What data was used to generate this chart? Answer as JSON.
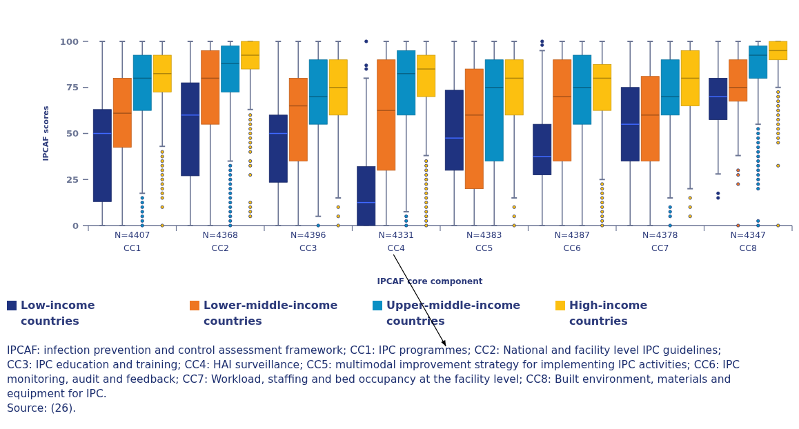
{
  "chart_data": {
    "type": "box",
    "categories": [
      "N=4407\nCC1",
      "N=4368\nCC2",
      "N=4396\nCC3",
      "N=4331\nCC4",
      "N=4383\nCC5",
      "N=4387\nCC6",
      "N=4378\nCC7",
      "N=4347\nCC8"
    ],
    "xlabel": "IPCAF core component",
    "ylabel": "IPCAF scores",
    "ylim": [
      0,
      100
    ],
    "yticks": [
      0,
      25,
      50,
      75,
      100
    ],
    "grid": false,
    "legend": "bottom",
    "series": [
      {
        "name": "Low-income countries",
        "color": "#1f3380",
        "boxes": [
          {
            "low": 0,
            "q1": 13,
            "median": 50,
            "q3": 63,
            "high": 100
          },
          {
            "low": 0,
            "q1": 27,
            "median": 60,
            "q3": 77.5,
            "high": 100
          },
          {
            "low": 0,
            "q1": 23.5,
            "median": 50,
            "q3": 60,
            "high": 100
          },
          {
            "low": 0,
            "q1": 0,
            "median": 12.5,
            "q3": 32,
            "high": 80,
            "outliers": [
              85,
              87,
              100
            ]
          },
          {
            "low": 0,
            "q1": 30,
            "median": 47.5,
            "q3": 73.5,
            "high": 100
          },
          {
            "low": 0,
            "q1": 27.5,
            "median": 37.5,
            "q3": 55,
            "high": 95,
            "outliers": [
              98,
              100
            ]
          },
          {
            "low": 0,
            "q1": 35,
            "median": 55,
            "q3": 75,
            "high": 100
          },
          {
            "low": 28,
            "q1": 57.5,
            "median": 70,
            "q3": 80,
            "high": 100,
            "outliers": [
              17.5,
              15
            ]
          }
        ]
      },
      {
        "name": "Lower-middle-income countries",
        "color": "#ee7623",
        "boxes": [
          {
            "low": 0,
            "q1": 42.5,
            "median": 61,
            "q3": 80,
            "high": 100
          },
          {
            "low": 0,
            "q1": 55,
            "median": 80,
            "q3": 95,
            "high": 100
          },
          {
            "low": 0,
            "q1": 35,
            "median": 65,
            "q3": 80,
            "high": 100
          },
          {
            "low": 0,
            "q1": 30,
            "median": 62.5,
            "q3": 90,
            "high": 100
          },
          {
            "low": 0,
            "q1": 20,
            "median": 60,
            "q3": 85,
            "high": 100
          },
          {
            "low": 0,
            "q1": 35,
            "median": 70,
            "q3": 90,
            "high": 100
          },
          {
            "low": 0,
            "q1": 35,
            "median": 60,
            "q3": 81,
            "high": 100
          },
          {
            "low": 38,
            "q1": 67.5,
            "median": 75,
            "q3": 90,
            "high": 100,
            "outliers": [
              30,
              27.5,
              22.5,
              0
            ]
          }
        ]
      },
      {
        "name": "Upper-middle-income countries",
        "color": "#0a8fc4",
        "boxes": [
          {
            "low": 17.5,
            "q1": 62.5,
            "median": 80,
            "q3": 92.5,
            "high": 100,
            "outliers": [
              15,
              12.5,
              10,
              7.5,
              5,
              2.5,
              0
            ]
          },
          {
            "low": 35,
            "q1": 72.5,
            "median": 88,
            "q3": 97.5,
            "high": 100,
            "outliers": [
              32.5,
              30,
              27.5,
              25,
              22.5,
              20,
              17.5,
              15,
              12.5,
              10,
              7.5,
              5,
              2.5,
              0
            ]
          },
          {
            "low": 5,
            "q1": 55,
            "median": 70,
            "q3": 90,
            "high": 100,
            "outliers": [
              0
            ]
          },
          {
            "low": 7.5,
            "q1": 60,
            "median": 82.5,
            "q3": 95,
            "high": 100,
            "outliers": [
              5,
              2.5,
              0
            ]
          },
          {
            "low": 0,
            "q1": 35,
            "median": 75,
            "q3": 90,
            "high": 100
          },
          {
            "low": 0,
            "q1": 55,
            "median": 75,
            "q3": 92.5,
            "high": 100
          },
          {
            "low": 15,
            "q1": 60,
            "median": 70,
            "q3": 90,
            "high": 100,
            "outliers": [
              10,
              7.5,
              5,
              0
            ]
          },
          {
            "low": 55,
            "q1": 80,
            "median": 92.5,
            "q3": 97.5,
            "high": 100,
            "outliers": [
              52.5,
              50,
              47.5,
              45,
              42.5,
              40,
              37.5,
              35,
              32.5,
              30,
              27.5,
              25,
              22.5,
              20,
              2.5,
              0
            ]
          }
        ]
      },
      {
        "name": "High-income countries",
        "color": "#fcc010",
        "boxes": [
          {
            "low": 43,
            "q1": 72.5,
            "median": 82.5,
            "q3": 92.5,
            "high": 100,
            "outliers": [
              40,
              37.5,
              35,
              32.5,
              30,
              27.5,
              25,
              22.5,
              20,
              17.5,
              15,
              10,
              0
            ]
          },
          {
            "low": 63,
            "q1": 85,
            "median": 92.5,
            "q3": 100,
            "high": 100,
            "outliers": [
              60,
              57.5,
              55,
              52.5,
              50,
              47.5,
              45,
              42.5,
              40,
              35,
              32.5,
              27.5,
              12.5,
              10,
              7.5,
              5
            ]
          },
          {
            "low": 15,
            "q1": 60,
            "median": 75,
            "q3": 90,
            "high": 100,
            "outliers": [
              10,
              5,
              0
            ]
          },
          {
            "low": 38,
            "q1": 70,
            "median": 85,
            "q3": 92.5,
            "high": 100,
            "outliers": [
              35,
              32.5,
              30,
              27.5,
              25,
              22.5,
              20,
              17.5,
              15,
              12.5,
              10,
              7.5,
              5,
              2.5,
              0
            ]
          },
          {
            "low": 15,
            "q1": 60,
            "median": 80,
            "q3": 90,
            "high": 100,
            "outliers": [
              10,
              5,
              0
            ]
          },
          {
            "low": 25,
            "q1": 62.5,
            "median": 80,
            "q3": 87.5,
            "high": 100,
            "outliers": [
              22.5,
              20,
              17.5,
              15,
              12.5,
              10,
              7.5,
              5,
              2.5,
              0
            ]
          },
          {
            "low": 20,
            "q1": 65,
            "median": 80,
            "q3": 95,
            "high": 100,
            "outliers": [
              15,
              10,
              5
            ]
          },
          {
            "low": 75,
            "q1": 90,
            "median": 95,
            "q3": 100,
            "high": 100,
            "outliers": [
              72.5,
              70,
              67.5,
              65,
              62.5,
              60,
              57.5,
              55,
              52.5,
              50,
              47.5,
              45,
              32.5,
              0
            ]
          }
        ]
      }
    ],
    "annotations": [
      "IPCAF: infection prevention and control assessment framework; CC1: IPC programmes; CC2:  National and facility level IPC guidelines; CC3: IPC education and training; CC4: HAI surveillance; CC5: multimodal improvement strategy for implementing IPC activities; CC6: IPC monitoring, audit and feedback; CC7: Workload, staffing and bed occupancy at the facility level; CC8: Built environment, materials and equipment for IPC.",
      "Source: (26)."
    ]
  }
}
